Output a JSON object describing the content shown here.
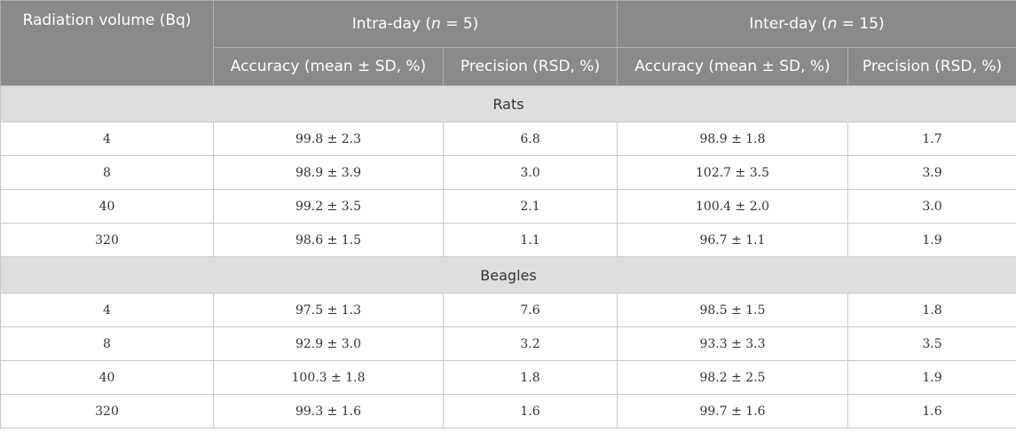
{
  "header": {
    "col1": "Radiation volume (Bq)",
    "intra": {
      "label": "Intra-day (",
      "n_symbol": "n",
      "label_tail": " = 5)"
    },
    "inter": {
      "label": "Inter-day (",
      "n_symbol": "n",
      "label_tail": " = 15)"
    },
    "sub": [
      "Accuracy (mean ± SD, %)",
      "Precision (RSD, %)",
      "Accuracy (mean ± SD, %)",
      "Precision (RSD, %)"
    ]
  },
  "sections": [
    {
      "title": "Rats",
      "rows": [
        [
          "4",
          "99.8 ± 2.3",
          "6.8",
          "98.9 ± 1.8",
          "1.7"
        ],
        [
          "8",
          "98.9 ± 3.9",
          "3.0",
          "102.7 ± 3.5",
          "3.9"
        ],
        [
          "40",
          "99.2 ± 3.5",
          "2.1",
          "100.4 ± 2.0",
          "3.0"
        ],
        [
          "320",
          "98.6 ± 1.5",
          "1.1",
          "96.7 ± 1.1",
          "1.9"
        ]
      ]
    },
    {
      "title": "Beagles",
      "rows": [
        [
          "4",
          "97.5 ± 1.3",
          "7.6",
          "98.5 ± 1.5",
          "1.8"
        ],
        [
          "8",
          "92.9 ± 3.0",
          "3.2",
          "93.3 ± 3.3",
          "3.5"
        ],
        [
          "40",
          "100.3 ± 1.8",
          "1.8",
          "98.2 ± 2.5",
          "1.9"
        ],
        [
          "320",
          "99.3 ± 1.6",
          "1.6",
          "99.7 ± 1.6",
          "1.6"
        ]
      ]
    }
  ]
}
